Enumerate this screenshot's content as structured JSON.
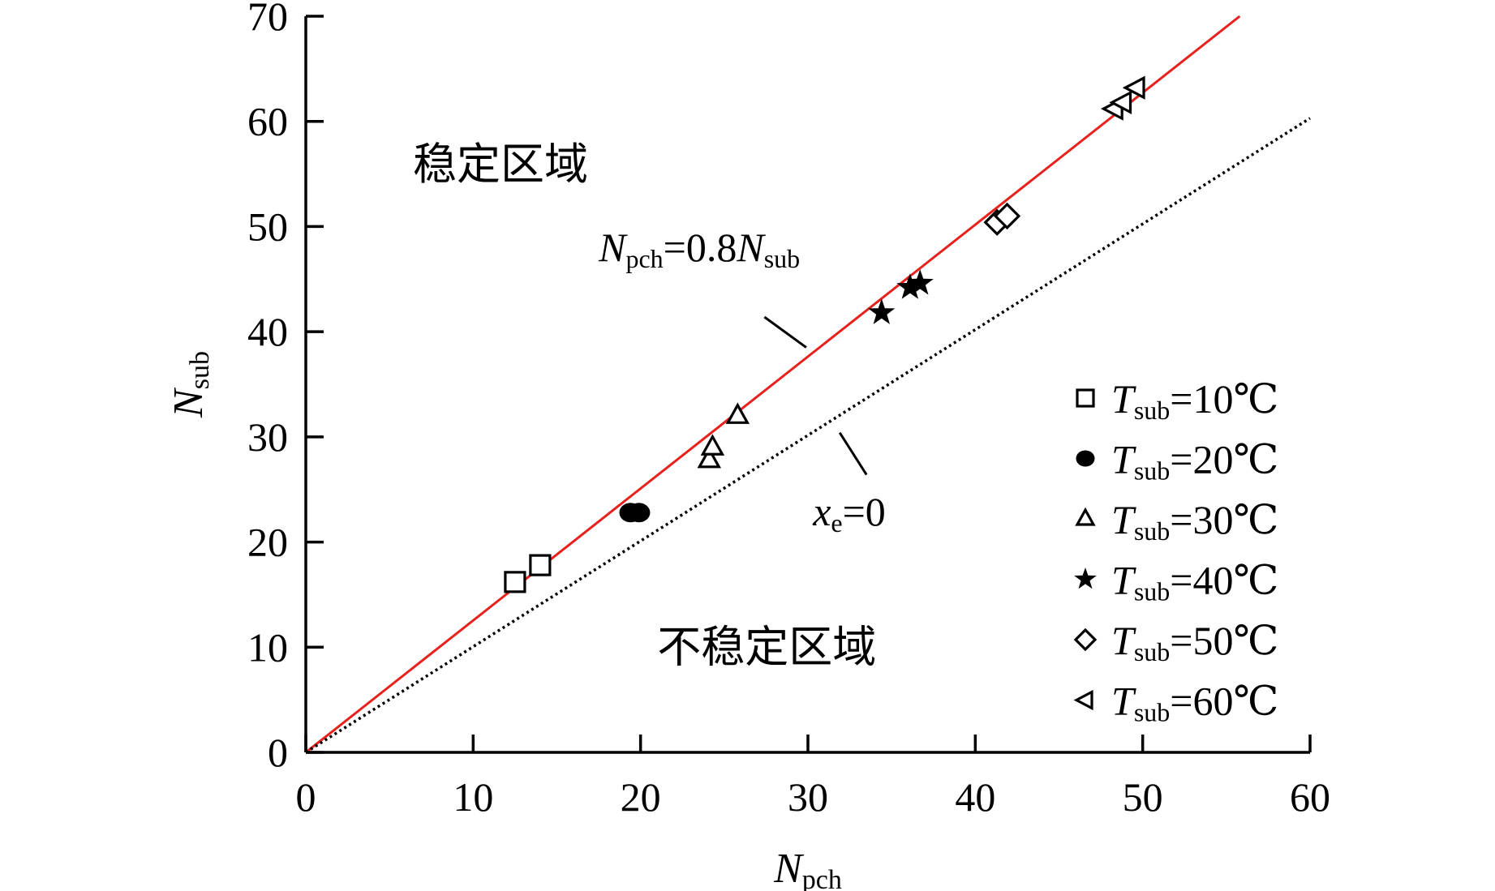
{
  "chart_data": {
    "type": "scatter",
    "xlim": [
      0,
      60
    ],
    "ylim": [
      0,
      70
    ],
    "x_ticks": [
      "0",
      "10",
      "20",
      "30",
      "40",
      "50",
      "60"
    ],
    "y_ticks": [
      "0",
      "10",
      "20",
      "30",
      "40",
      "50",
      "60",
      "70"
    ],
    "xlabel": {
      "main": "N",
      "sub": "pch"
    },
    "ylabel": {
      "main": "N",
      "sub": "sub"
    },
    "series": [
      {
        "name": "T_sub=10℃",
        "label": {
          "main": "T",
          "sub": "sub",
          "rest": "=10℃"
        },
        "marker": "square-open",
        "points": [
          [
            12.5,
            16.2
          ],
          [
            14.0,
            17.8
          ]
        ]
      },
      {
        "name": "T_sub=20℃",
        "label": {
          "main": "T",
          "sub": "sub",
          "rest": "=20℃"
        },
        "marker": "circle-filled",
        "points": [
          [
            19.4,
            22.8
          ],
          [
            19.9,
            22.8
          ]
        ]
      },
      {
        "name": "T_sub=30℃",
        "label": {
          "main": "T",
          "sub": "sub",
          "rest": "=30℃"
        },
        "marker": "triangle-open",
        "points": [
          [
            24.1,
            27.8
          ],
          [
            24.3,
            29.0
          ],
          [
            25.8,
            32.0
          ]
        ]
      },
      {
        "name": "T_sub=40℃",
        "label": {
          "main": "T",
          "sub": "sub",
          "rest": "=40℃"
        },
        "marker": "star-filled",
        "points": [
          [
            34.4,
            41.8
          ],
          [
            36.1,
            44.2
          ],
          [
            36.7,
            44.6
          ]
        ]
      },
      {
        "name": "T_sub=50℃",
        "label": {
          "main": "T",
          "sub": "sub",
          "rest": "=50℃"
        },
        "marker": "diamond-open",
        "points": [
          [
            41.3,
            50.4
          ],
          [
            41.9,
            51.0
          ]
        ]
      },
      {
        "name": "T_sub=60℃",
        "label": {
          "main": "T",
          "sub": "sub",
          "rest": "=60℃"
        },
        "marker": "triangle-left-open",
        "points": [
          [
            48.3,
            61.2
          ],
          [
            48.8,
            61.8
          ],
          [
            49.6,
            63.2
          ]
        ]
      }
    ],
    "lines": [
      {
        "id": "stability-boundary",
        "color": "#e8211c",
        "style": "solid",
        "points": [
          [
            0,
            0
          ],
          [
            55.8,
            70
          ]
        ]
      },
      {
        "id": "xe-zero",
        "color": "#000000",
        "style": "dotted",
        "points": [
          [
            0,
            0
          ],
          [
            60,
            60.3
          ]
        ]
      }
    ],
    "annotations": [
      {
        "id": "boundary-label",
        "parts": [
          [
            "N",
            "it"
          ],
          [
            "pch",
            "sub"
          ],
          [
            "=0.8",
            "rm"
          ],
          [
            "N",
            "it"
          ],
          [
            "sub",
            "sub"
          ]
        ],
        "text_at": [
          17.5,
          46.7
        ],
        "leader": [
          [
            27.4,
            41.4
          ],
          [
            29.9,
            38.5
          ]
        ]
      },
      {
        "id": "xe-label",
        "parts": [
          [
            "x",
            "it"
          ],
          [
            "e",
            "sub"
          ],
          [
            "=0",
            "rm"
          ]
        ],
        "text_at": [
          30.3,
          21.6
        ],
        "leader": [
          [
            31.9,
            30.4
          ],
          [
            33.5,
            26.4
          ]
        ]
      }
    ],
    "regions": [
      {
        "id": "stable-region",
        "text": "稳定区域",
        "at": [
          6.4,
          54.5
        ]
      },
      {
        "id": "unstable-region",
        "text": "不稳定区域",
        "at": [
          21.0,
          8.6
        ]
      }
    ],
    "legend_placement": "lower-right",
    "grid": false
  }
}
